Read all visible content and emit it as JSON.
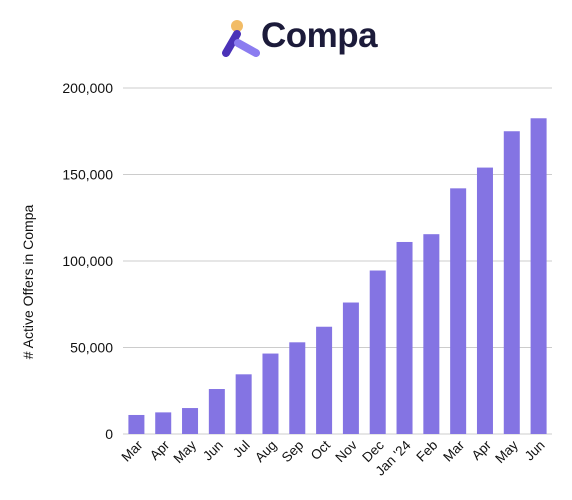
{
  "brand": {
    "name": "Compa",
    "logo_icon": "compa-logo-icon",
    "colors": {
      "dot": "#F2BC66",
      "mark_dark": "#4B32B8",
      "mark_light": "#8B7CF0",
      "text": "#1C1B3A"
    }
  },
  "chart_data": {
    "type": "bar",
    "title": "",
    "xlabel": "",
    "ylabel": "# Active Offers in Compa",
    "categories": [
      "Mar",
      "Apr",
      "May",
      "Jun",
      "Jul",
      "Aug",
      "Sep",
      "Oct",
      "Nov",
      "Dec",
      "Jan '24",
      "Feb",
      "Mar",
      "Apr",
      "May",
      "Jun"
    ],
    "values": [
      11000,
      12500,
      15000,
      26000,
      34500,
      46500,
      53000,
      62000,
      76000,
      94500,
      111000,
      115500,
      142000,
      154000,
      175000,
      182500
    ],
    "ylim": [
      0,
      200000
    ],
    "yticks": [
      0,
      50000,
      100000,
      150000,
      200000
    ],
    "ytick_labels": [
      "0",
      "50,000",
      "100,000",
      "150,000",
      "200,000"
    ],
    "grid": true,
    "legend": "none",
    "bar_color": "#8474E3",
    "grid_color": "#CCCCCC"
  }
}
